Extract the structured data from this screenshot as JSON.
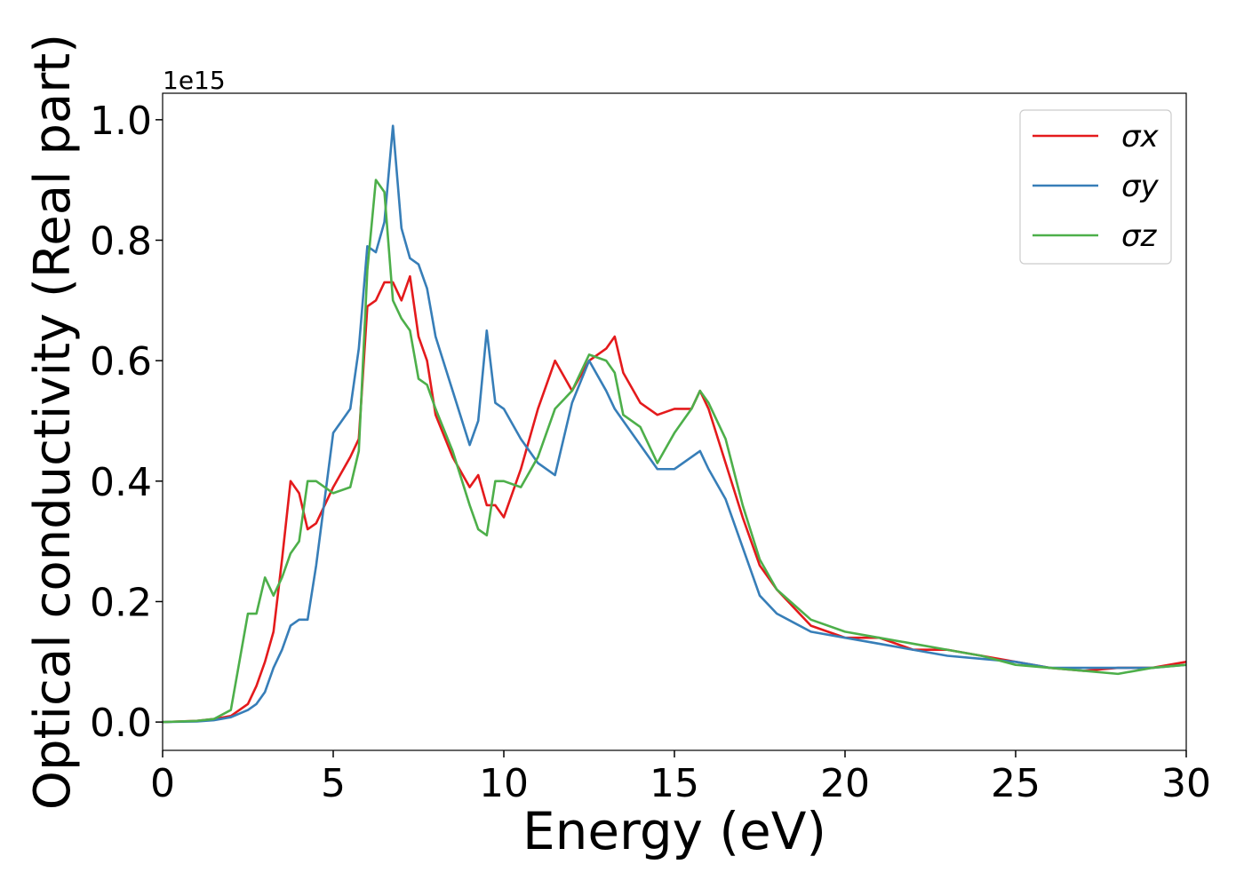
{
  "chart_data": {
    "type": "line",
    "xlabel": "Energy (eV)",
    "ylabel": "Optical conductivity (Real part)",
    "y_offset_label": "1e15",
    "legend": "upper right",
    "xlim": [
      0,
      30
    ],
    "xticks": [
      0,
      5,
      10,
      15,
      20,
      25,
      30
    ],
    "ylim": [
      -0.047,
      1.044
    ],
    "yticks": [
      {
        "value": 0,
        "label": "0.0"
      },
      0.2,
      0.4,
      0.6,
      0.8,
      {
        "value": 1,
        "label": "1.0"
      }
    ],
    "x": [
      0,
      1,
      1.5,
      2,
      2.5,
      2.75,
      3,
      3.25,
      3.5,
      3.75,
      4,
      4.25,
      4.5,
      5,
      5.5,
      5.75,
      6,
      6.25,
      6.5,
      6.75,
      7,
      7.25,
      7.5,
      7.75,
      8,
      8.5,
      9,
      9.25,
      9.5,
      9.75,
      10,
      10.5,
      11,
      11.5,
      12,
      12.5,
      13,
      13.25,
      13.5,
      14,
      14.5,
      15,
      15.5,
      15.75,
      16,
      16.5,
      17,
      17.5,
      18,
      19,
      20,
      21,
      22,
      23,
      24,
      25,
      26,
      27,
      28,
      29,
      30
    ],
    "series": [
      {
        "name": "σx",
        "color": "#e41a1c",
        "values": [
          0,
          0.002,
          0.005,
          0.01,
          0.03,
          0.06,
          0.1,
          0.15,
          0.27,
          0.4,
          0.38,
          0.32,
          0.33,
          0.39,
          0.44,
          0.47,
          0.69,
          0.7,
          0.73,
          0.73,
          0.7,
          0.74,
          0.64,
          0.6,
          0.51,
          0.44,
          0.39,
          0.41,
          0.36,
          0.36,
          0.34,
          0.42,
          0.52,
          0.6,
          0.55,
          0.6,
          0.62,
          0.64,
          0.58,
          0.53,
          0.51,
          0.52,
          0.52,
          0.55,
          0.52,
          0.43,
          0.34,
          0.26,
          0.22,
          0.16,
          0.14,
          0.14,
          0.12,
          0.12,
          0.11,
          0.1,
          0.09,
          0.085,
          0.09,
          0.09,
          0.1
        ]
      },
      {
        "name": "σy",
        "color": "#377eb8",
        "values": [
          0,
          0.001,
          0.003,
          0.008,
          0.02,
          0.03,
          0.05,
          0.09,
          0.12,
          0.16,
          0.17,
          0.17,
          0.26,
          0.48,
          0.52,
          0.62,
          0.79,
          0.78,
          0.83,
          0.99,
          0.82,
          0.77,
          0.76,
          0.72,
          0.64,
          0.55,
          0.46,
          0.5,
          0.65,
          0.53,
          0.52,
          0.47,
          0.43,
          0.41,
          0.53,
          0.6,
          0.55,
          0.52,
          0.5,
          0.46,
          0.42,
          0.42,
          0.44,
          0.45,
          0.42,
          0.37,
          0.29,
          0.21,
          0.18,
          0.15,
          0.14,
          0.13,
          0.12,
          0.11,
          0.105,
          0.1,
          0.09,
          0.09,
          0.09,
          0.09,
          0.095
        ]
      },
      {
        "name": "σz",
        "color": "#4daf4a",
        "values": [
          0,
          0.002,
          0.005,
          0.02,
          0.18,
          0.18,
          0.24,
          0.21,
          0.24,
          0.28,
          0.3,
          0.4,
          0.4,
          0.38,
          0.39,
          0.45,
          0.75,
          0.9,
          0.88,
          0.7,
          0.67,
          0.65,
          0.57,
          0.56,
          0.52,
          0.45,
          0.36,
          0.32,
          0.31,
          0.4,
          0.4,
          0.39,
          0.44,
          0.52,
          0.55,
          0.61,
          0.6,
          0.58,
          0.51,
          0.49,
          0.43,
          0.48,
          0.52,
          0.55,
          0.53,
          0.47,
          0.36,
          0.27,
          0.22,
          0.17,
          0.15,
          0.14,
          0.13,
          0.12,
          0.11,
          0.095,
          0.09,
          0.085,
          0.08,
          0.09,
          0.095
        ]
      }
    ]
  }
}
